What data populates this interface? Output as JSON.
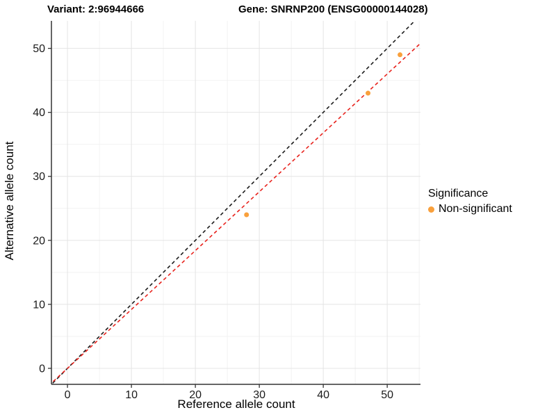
{
  "header": {
    "variant_title": "Variant: 2:96944666",
    "gene_title": "Gene: SNRNP200 (ENSG00000144028)"
  },
  "legend": {
    "title": "Significance",
    "items": [
      {
        "label": "Non-significant",
        "color": "#F9A03C"
      }
    ]
  },
  "chart_data": {
    "type": "scatter",
    "title": "Variant: 2:96944666 — Gene: SNRNP200 (ENSG00000144028)",
    "xlabel": "Reference allele count",
    "ylabel": "Alternative allele count",
    "xlim": [
      -2.4,
      55.2
    ],
    "ylim": [
      -2.5,
      54.3
    ],
    "x_ticks": [
      0,
      10,
      20,
      30,
      40,
      50
    ],
    "y_ticks": [
      0,
      10,
      20,
      30,
      40,
      50
    ],
    "grid": "major+minor",
    "legend_position": "right",
    "series": [
      {
        "name": "Non-significant",
        "color": "#F9A03C",
        "points": [
          {
            "x": 28,
            "y": 24
          },
          {
            "x": 47,
            "y": 43
          },
          {
            "x": 52,
            "y": 49
          }
        ]
      }
    ],
    "reference_lines": [
      {
        "name": "identity",
        "slope": 1,
        "intercept": 0,
        "style": "dashed",
        "color": "#1a1a1a"
      },
      {
        "name": "expected-ratio",
        "slope": 0.92,
        "intercept": 0,
        "style": "dashed",
        "color": "#e8221c"
      }
    ]
  },
  "style": {
    "grid_major": "#e4e4e4",
    "grid_minor": "#f2f2f2",
    "axis_line": "#333333",
    "tick_color": "#333333",
    "tick_label_color": "#1a1a1a"
  }
}
